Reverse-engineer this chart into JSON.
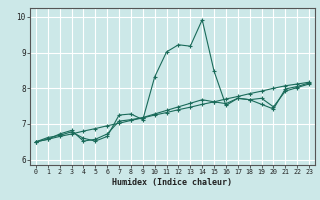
{
  "title": "",
  "xlabel": "Humidex (Indice chaleur)",
  "bg_color": "#cce8e8",
  "grid_color": "#ffffff",
  "line_color": "#1a6b5a",
  "x_ticks": [
    0,
    1,
    2,
    3,
    4,
    5,
    6,
    7,
    8,
    9,
    10,
    11,
    12,
    13,
    14,
    15,
    16,
    17,
    18,
    19,
    20,
    21,
    22,
    23
  ],
  "y_ticks": [
    6,
    7,
    8,
    9,
    10
  ],
  "xlim": [
    -0.5,
    23.5
  ],
  "ylim": [
    5.85,
    10.25
  ],
  "series": [
    [
      6.5,
      6.62,
      6.68,
      6.78,
      6.6,
      6.52,
      6.65,
      7.25,
      7.28,
      7.12,
      8.32,
      9.02,
      9.22,
      9.18,
      9.92,
      8.48,
      7.52,
      7.72,
      7.68,
      7.55,
      7.42,
      7.98,
      8.05,
      8.15
    ],
    [
      6.5,
      6.57,
      6.72,
      6.82,
      6.52,
      6.57,
      6.72,
      7.08,
      7.12,
      7.18,
      7.28,
      7.38,
      7.48,
      7.58,
      7.68,
      7.62,
      7.57,
      7.72,
      7.68,
      7.72,
      7.48,
      7.92,
      8.02,
      8.12
    ],
    [
      6.5,
      6.57,
      6.65,
      6.72,
      6.8,
      6.87,
      6.95,
      7.02,
      7.1,
      7.17,
      7.25,
      7.32,
      7.4,
      7.47,
      7.55,
      7.62,
      7.7,
      7.77,
      7.85,
      7.92,
      8.0,
      8.07,
      8.12,
      8.17
    ]
  ]
}
